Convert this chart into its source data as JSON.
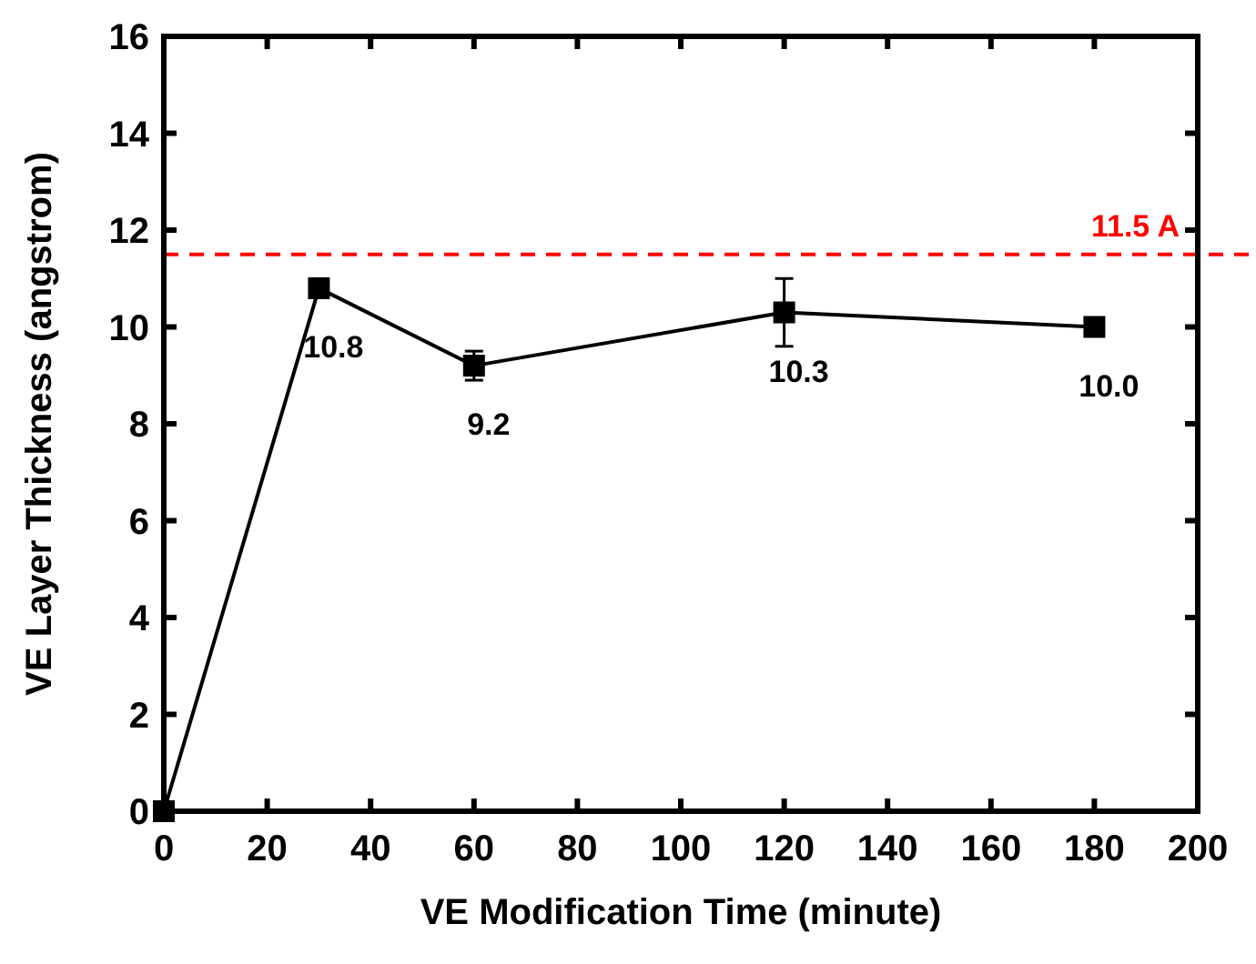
{
  "chart_data": {
    "type": "line",
    "xlabel": "VE Modification Time (minute)",
    "ylabel": "VE Layer Thickness (angstrom)",
    "x": [
      0,
      30,
      60,
      120,
      180
    ],
    "values": [
      0,
      10.8,
      9.2,
      10.3,
      10.0
    ],
    "errors": [
      null,
      0.1,
      0.3,
      0.7,
      0.1
    ],
    "value_labels": [
      null,
      "10.8",
      "9.2",
      "10.3",
      "10.0"
    ],
    "color": "#000000",
    "marker": "square",
    "line_style": "solid",
    "grid": false,
    "xlim": [
      0,
      200
    ],
    "xticks": [
      0,
      20,
      40,
      60,
      80,
      100,
      120,
      140,
      160,
      180,
      200
    ],
    "ylim": [
      0,
      16
    ],
    "yticks": [
      0,
      2,
      4,
      6,
      8,
      10,
      12,
      14,
      16
    ],
    "ref_lines": [
      {
        "axis": "y",
        "value": 11.5,
        "label": "11.5 A",
        "color": "#ff0000",
        "line_style": "dashed"
      }
    ]
  }
}
